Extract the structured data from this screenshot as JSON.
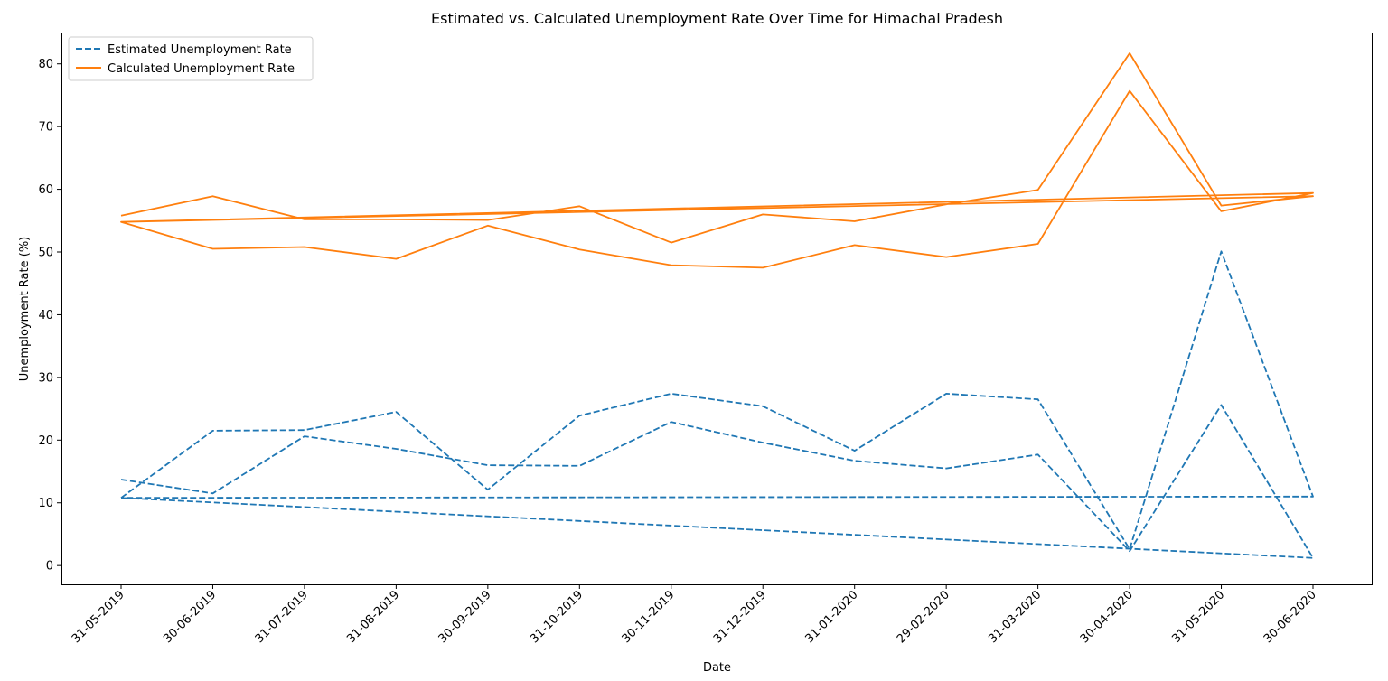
{
  "chart_data": {
    "type": "line",
    "title": "Estimated vs. Calculated Unemployment Rate Over Time for Himachal Pradesh",
    "xlabel": "Date",
    "ylabel": "Unemployment Rate (%)",
    "ylim": [
      -3,
      85
    ],
    "yticks": [
      0,
      10,
      20,
      30,
      40,
      50,
      60,
      70,
      80
    ],
    "grid": false,
    "legend_position": "top-left",
    "categories": [
      "31-05-2019",
      "30-06-2019",
      "31-07-2019",
      "31-08-2019",
      "30-09-2019",
      "31-10-2019",
      "30-11-2019",
      "31-12-2019",
      "31-01-2020",
      "29-02-2020",
      "31-03-2020",
      "30-04-2020",
      "31-05-2020",
      "30-06-2020"
    ],
    "series": [
      {
        "name": "Estimated Unemployment Rate",
        "color": "#1f77b4",
        "style": "dashed",
        "x": [
          "31-05-2019",
          "30-06-2019",
          "31-07-2019",
          "31-08-2019",
          "30-09-2019",
          "31-10-2019",
          "30-11-2019",
          "31-12-2019",
          "31-01-2020",
          "29-02-2020",
          "31-03-2020",
          "30-04-2020",
          "31-05-2020",
          "30-06-2020",
          "31-05-2019",
          "30-06-2019",
          "31-07-2019",
          "31-08-2019",
          "30-09-2019",
          "31-10-2019",
          "30-11-2019",
          "31-12-2019",
          "31-01-2020",
          "29-02-2020",
          "31-03-2020",
          "30-04-2020",
          "31-05-2020",
          "30-06-2020",
          "31-05-2019"
        ],
        "values": [
          13.7,
          11.5,
          20.6,
          18.6,
          16.0,
          15.9,
          22.9,
          19.6,
          16.7,
          15.5,
          17.7,
          2.3,
          25.6,
          1.2,
          10.8,
          21.5,
          21.6,
          24.5,
          12.1,
          23.9,
          27.4,
          25.4,
          18.3,
          27.4,
          26.5,
          2.6,
          50.1,
          11.0,
          10.8
        ]
      },
      {
        "name": "Calculated Unemployment Rate",
        "color": "#ff7f0e",
        "style": "solid",
        "x": [
          "31-05-2019",
          "30-06-2019",
          "31-07-2019",
          "31-08-2019",
          "30-09-2019",
          "31-10-2019",
          "30-11-2019",
          "31-12-2019",
          "31-01-2020",
          "29-02-2020",
          "31-03-2020",
          "30-04-2020",
          "31-05-2020",
          "30-06-2020",
          "31-05-2019",
          "30-06-2019",
          "31-07-2019",
          "31-08-2019",
          "30-09-2019",
          "31-10-2019",
          "30-11-2019",
          "31-12-2019",
          "31-01-2020",
          "29-02-2020",
          "31-03-2020",
          "30-04-2020",
          "31-05-2020",
          "30-06-2020",
          "31-05-2019"
        ],
        "values": [
          55.8,
          58.9,
          55.2,
          55.2,
          55.1,
          57.3,
          51.5,
          56.0,
          54.9,
          57.6,
          59.9,
          81.7,
          57.4,
          58.9,
          54.8,
          50.5,
          50.8,
          48.9,
          54.2,
          50.4,
          47.9,
          47.5,
          51.1,
          49.2,
          51.3,
          75.7,
          56.5,
          59.4,
          54.8
        ]
      }
    ]
  }
}
